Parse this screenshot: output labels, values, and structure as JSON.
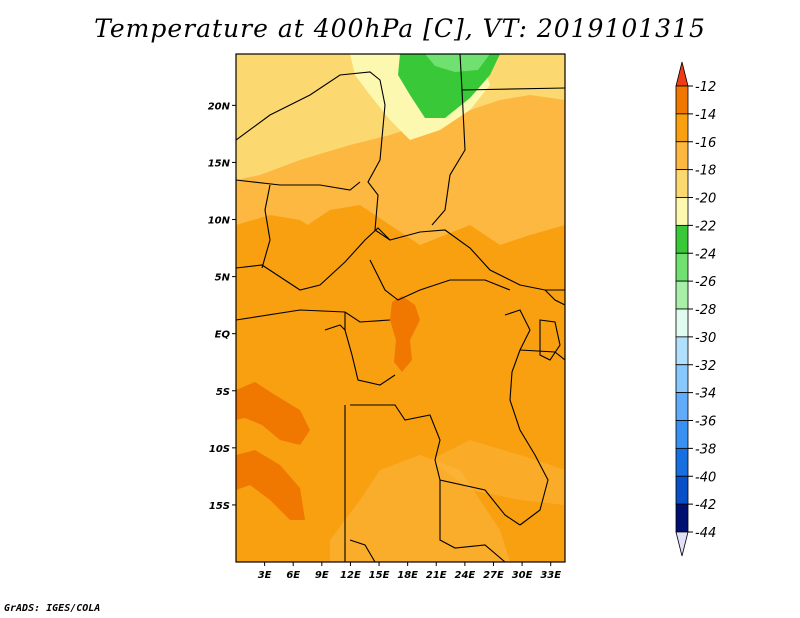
{
  "title": "Temperature at 400hPa [C], VT: 2019101315",
  "credit": "GrADS: IGES/COLA",
  "map": {
    "lon_range": [
      0,
      34.5
    ],
    "lat_range": [
      -20,
      24.5
    ],
    "lat_ticks": [
      {
        "value": 20,
        "label": "20N"
      },
      {
        "value": 15,
        "label": "15N"
      },
      {
        "value": 10,
        "label": "10N"
      },
      {
        "value": 5,
        "label": "5N"
      },
      {
        "value": 0,
        "label": "EQ"
      },
      {
        "value": -5,
        "label": "5S"
      },
      {
        "value": -10,
        "label": "10S"
      },
      {
        "value": -15,
        "label": "15S"
      }
    ],
    "lon_ticks": [
      {
        "value": 3,
        "label": "3E"
      },
      {
        "value": 6,
        "label": "6E"
      },
      {
        "value": 9,
        "label": "9E"
      },
      {
        "value": 12,
        "label": "12E"
      },
      {
        "value": 15,
        "label": "15E"
      },
      {
        "value": 18,
        "label": "18E"
      },
      {
        "value": 21,
        "label": "21E"
      },
      {
        "value": 24,
        "label": "24E"
      },
      {
        "value": 27,
        "label": "27E"
      },
      {
        "value": 30,
        "label": "30E"
      },
      {
        "value": 33,
        "label": "33E"
      }
    ]
  },
  "colorbar": {
    "labels": [
      "-12",
      "-14",
      "-16",
      "-18",
      "-20",
      "-22",
      "-24",
      "-26",
      "-28",
      "-30",
      "-32",
      "-34",
      "-36",
      "-38",
      "-40",
      "-42",
      "-44"
    ],
    "colors": [
      "#f03c16",
      "#f07800",
      "#f8a010",
      "#fcb840",
      "#fcd870",
      "#fcf8b0",
      "#38c838",
      "#70e070",
      "#a8f0a8",
      "#e0fcf0",
      "#b0e0fc",
      "#88c8fc",
      "#60acf8",
      "#3890f0",
      "#1870e0",
      "#0850c8",
      "#001070",
      "#e0e0f8"
    ]
  }
}
